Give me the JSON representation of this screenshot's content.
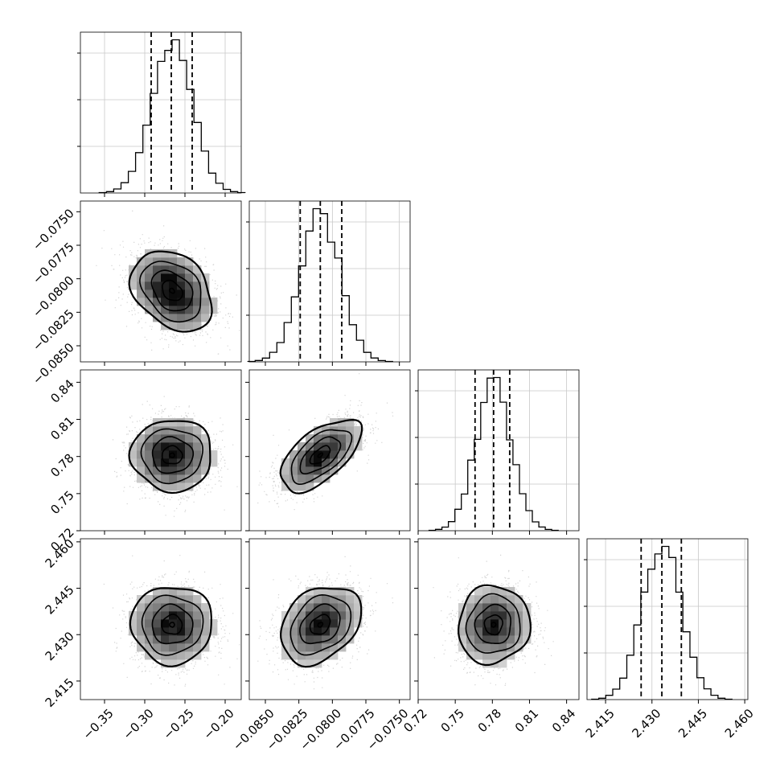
{
  "chart_data": {
    "type": "corner",
    "grid": true,
    "parameters": [
      {
        "range": [
          -0.38,
          -0.18
        ],
        "ticks": [
          -0.35,
          -0.3,
          -0.25,
          -0.2
        ],
        "tick_labels": [
          "−0.35",
          "−0.30",
          "−0.25",
          "−0.20"
        ],
        "quantiles": [
          -0.292,
          -0.267,
          -0.241
        ],
        "mean": -0.266,
        "sd": 0.0252
      },
      {
        "range": [
          -0.0862,
          -0.0742
        ],
        "ticks": [
          -0.085,
          -0.0825,
          -0.08,
          -0.0775,
          -0.075
        ],
        "tick_labels": [
          "−0.0850",
          "−0.0825",
          "−0.0800",
          "−0.0775",
          "−0.0750"
        ],
        "quantiles": [
          -0.0824,
          -0.0809,
          -0.0793
        ],
        "mean": -0.0809,
        "sd": 0.0015
      },
      {
        "range": [
          0.72,
          0.85
        ],
        "ticks": [
          0.72,
          0.75,
          0.78,
          0.81,
          0.84
        ],
        "tick_labels": [
          "0.72",
          "0.75",
          "0.78",
          "0.81",
          "0.84"
        ],
        "quantiles": [
          0.766,
          0.781,
          0.794
        ],
        "mean": 0.781,
        "sd": 0.0145
      },
      {
        "range": [
          2.409,
          2.461
        ],
        "ticks": [
          2.415,
          2.43,
          2.445,
          2.46
        ],
        "tick_labels": [
          "2.415",
          "2.430",
          "2.445",
          "2.460"
        ],
        "quantiles": [
          2.4265,
          2.4332,
          2.4395
        ],
        "mean": 2.4332,
        "sd": 0.0063
      }
    ],
    "correlations": [
      [
        1,
        -0.3,
        0.0,
        0.0
      ],
      [
        -0.3,
        1,
        0.6,
        0.3
      ],
      [
        0.0,
        0.6,
        1,
        0.05
      ],
      [
        0.0,
        0.3,
        0.05,
        1
      ]
    ]
  }
}
